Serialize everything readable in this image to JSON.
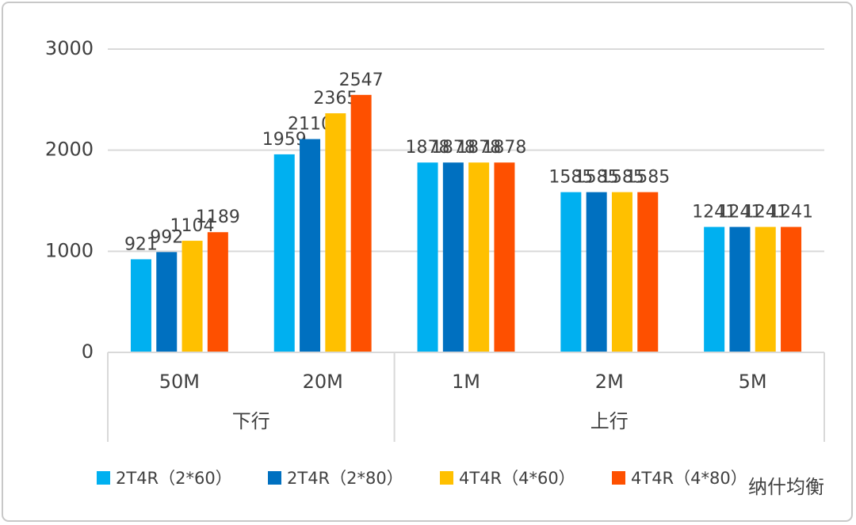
{
  "chart_data": {
    "type": "bar",
    "categories": [
      "50M",
      "20M",
      "1M",
      "2M",
      "5M"
    ],
    "category_groups": [
      {
        "name": "下行",
        "count": 2
      },
      {
        "name": "上行",
        "count": 3
      }
    ],
    "series": [
      {
        "name": "2T4R（2*60）",
        "color": "#00b0f0",
        "values": [
          921,
          1959,
          1878,
          1585,
          1241
        ]
      },
      {
        "name": "2T4R（2*80）",
        "color": "#0070c0",
        "values": [
          992,
          2110,
          1878,
          1585,
          1241
        ]
      },
      {
        "name": "4T4R（4*60）",
        "color": "#ffc000",
        "values": [
          1104,
          2365,
          1878,
          1585,
          1241
        ]
      },
      {
        "name": "4T4R（4*80）",
        "color": "#fe5000",
        "values": [
          1189,
          2547,
          1878,
          1585,
          1241
        ]
      }
    ],
    "ylim": [
      0,
      3000
    ],
    "yticks": [
      0,
      1000,
      2000,
      3000
    ],
    "grid": true,
    "legend": "bottom",
    "watermark": "纳什均衡"
  }
}
